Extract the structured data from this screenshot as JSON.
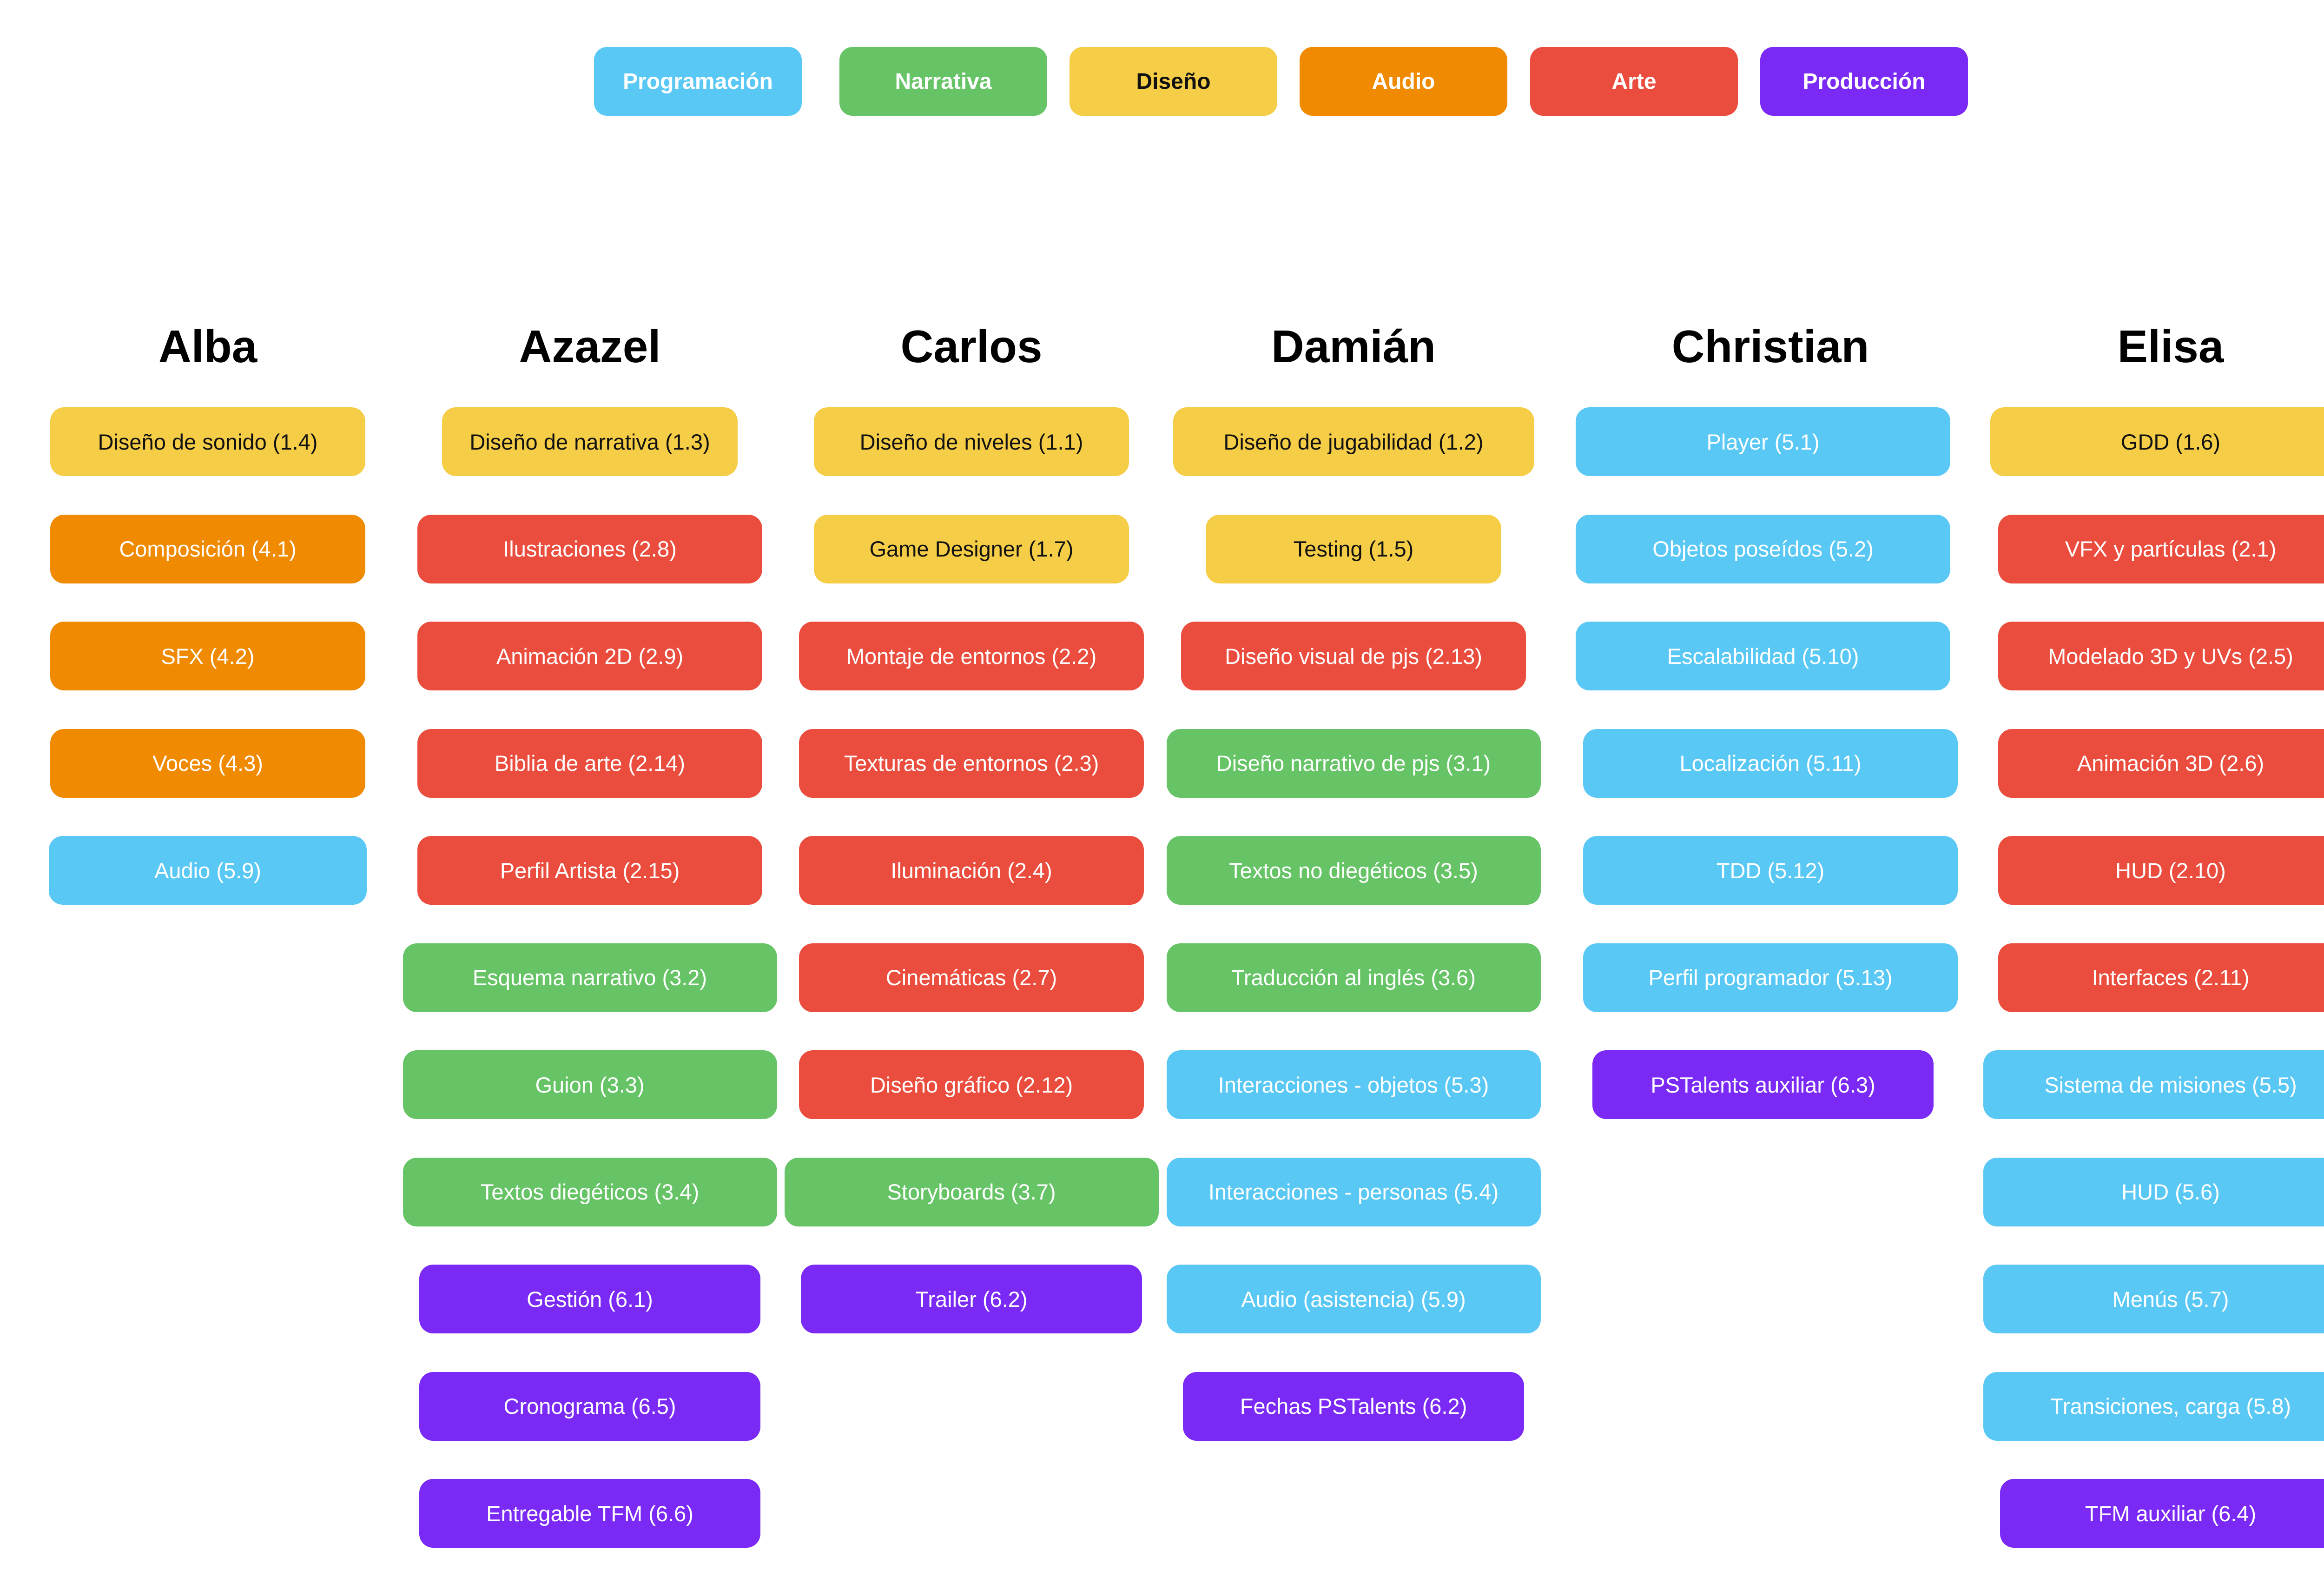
{
  "legend": [
    {
      "label": "Programación",
      "category": "prog"
    },
    {
      "label": "Narrativa",
      "category": "narr"
    },
    {
      "label": "Diseño",
      "category": "dis"
    },
    {
      "label": "Audio",
      "category": "aud"
    },
    {
      "label": "Arte",
      "category": "arte"
    },
    {
      "label": "Producción",
      "category": "prod"
    }
  ],
  "colors": {
    "prog": "#5ac8f5",
    "narr": "#66c466",
    "dis": "#f5cd47",
    "aud": "#f08a00",
    "arte": "#ea4d3d",
    "prod": "#7b2af5"
  },
  "columns": [
    {
      "name": "Alba",
      "tasks": [
        {
          "label": "Diseño de sonido (1.4)",
          "category": "dis"
        },
        {
          "label": "Composición (4.1)",
          "category": "aud"
        },
        {
          "label": "SFX (4.2)",
          "category": "aud"
        },
        {
          "label": "Voces (4.3)",
          "category": "aud"
        },
        {
          "label": "Audio (5.9)",
          "category": "prog"
        }
      ]
    },
    {
      "name": "Azazel",
      "tasks": [
        {
          "label": "Diseño de narrativa (1.3)",
          "category": "dis"
        },
        {
          "label": "Ilustraciones (2.8)",
          "category": "arte"
        },
        {
          "label": "Animación 2D (2.9)",
          "category": "arte"
        },
        {
          "label": "Biblia de arte (2.14)",
          "category": "arte"
        },
        {
          "label": "Perfil Artista (2.15)",
          "category": "arte"
        },
        {
          "label": "Esquema narrativo (3.2)",
          "category": "narr"
        },
        {
          "label": "Guion (3.3)",
          "category": "narr"
        },
        {
          "label": "Textos diegéticos (3.4)",
          "category": "narr"
        },
        {
          "label": "Gestión (6.1)",
          "category": "prod"
        },
        {
          "label": "Cronograma (6.5)",
          "category": "prod"
        },
        {
          "label": "Entregable TFM (6.6)",
          "category": "prod"
        }
      ]
    },
    {
      "name": "Carlos",
      "tasks": [
        {
          "label": "Diseño de niveles (1.1)",
          "category": "dis"
        },
        {
          "label": "Game Designer (1.7)",
          "category": "dis"
        },
        {
          "label": "Montaje de entornos (2.2)",
          "category": "arte"
        },
        {
          "label": "Texturas de entornos (2.3)",
          "category": "arte"
        },
        {
          "label": "Iluminación (2.4)",
          "category": "arte"
        },
        {
          "label": "Cinemáticas (2.7)",
          "category": "arte"
        },
        {
          "label": "Diseño gráfico (2.12)",
          "category": "arte"
        },
        {
          "label": "Storyboards (3.7)",
          "category": "narr"
        },
        {
          "label": "Trailer (6.2)",
          "category": "prod"
        }
      ]
    },
    {
      "name": "Damián",
      "tasks": [
        {
          "label": "Diseño de jugabilidad (1.2)",
          "category": "dis"
        },
        {
          "label": "Testing (1.5)",
          "category": "dis"
        },
        {
          "label": "Diseño visual de pjs (2.13)",
          "category": "arte"
        },
        {
          "label": "Diseño narrativo de pjs (3.1)",
          "category": "narr"
        },
        {
          "label": "Textos no diegéticos (3.5)",
          "category": "narr"
        },
        {
          "label": "Traducción al inglés (3.6)",
          "category": "narr"
        },
        {
          "label": "Interacciones - objetos (5.3)",
          "category": "prog"
        },
        {
          "label": "Interacciones - personas (5.4)",
          "category": "prog"
        },
        {
          "label": "Audio (asistencia) (5.9)",
          "category": "prog"
        },
        {
          "label": "Fechas PSTalents (6.2)",
          "category": "prod"
        }
      ]
    },
    {
      "name": "Christian",
      "tasks": [
        {
          "label": "Player (5.1)",
          "category": "prog"
        },
        {
          "label": "Objetos poseídos (5.2)",
          "category": "prog"
        },
        {
          "label": "Escalabilidad (5.10)",
          "category": "prog"
        },
        {
          "label": "Localización (5.11)",
          "category": "prog"
        },
        {
          "label": "TDD (5.12)",
          "category": "prog"
        },
        {
          "label": "Perfil programador (5.13)",
          "category": "prog"
        },
        {
          "label": "PSTalents auxiliar (6.3)",
          "category": "prod"
        }
      ]
    },
    {
      "name": "Elisa",
      "tasks": [
        {
          "label": "GDD (1.6)",
          "category": "dis"
        },
        {
          "label": "VFX y partículas (2.1)",
          "category": "arte"
        },
        {
          "label": "Modelado 3D y UVs (2.5)",
          "category": "arte"
        },
        {
          "label": "Animación 3D (2.6)",
          "category": "arte"
        },
        {
          "label": "HUD (2.10)",
          "category": "arte"
        },
        {
          "label": "Interfaces (2.11)",
          "category": "arte"
        },
        {
          "label": "Sistema de misiones (5.5)",
          "category": "prog"
        },
        {
          "label": "HUD (5.6)",
          "category": "prog"
        },
        {
          "label": "Menús (5.7)",
          "category": "prog"
        },
        {
          "label": "Transiciones, carga (5.8)",
          "category": "prog"
        },
        {
          "label": "TFM auxiliar (6.4)",
          "category": "prod"
        }
      ]
    }
  ]
}
